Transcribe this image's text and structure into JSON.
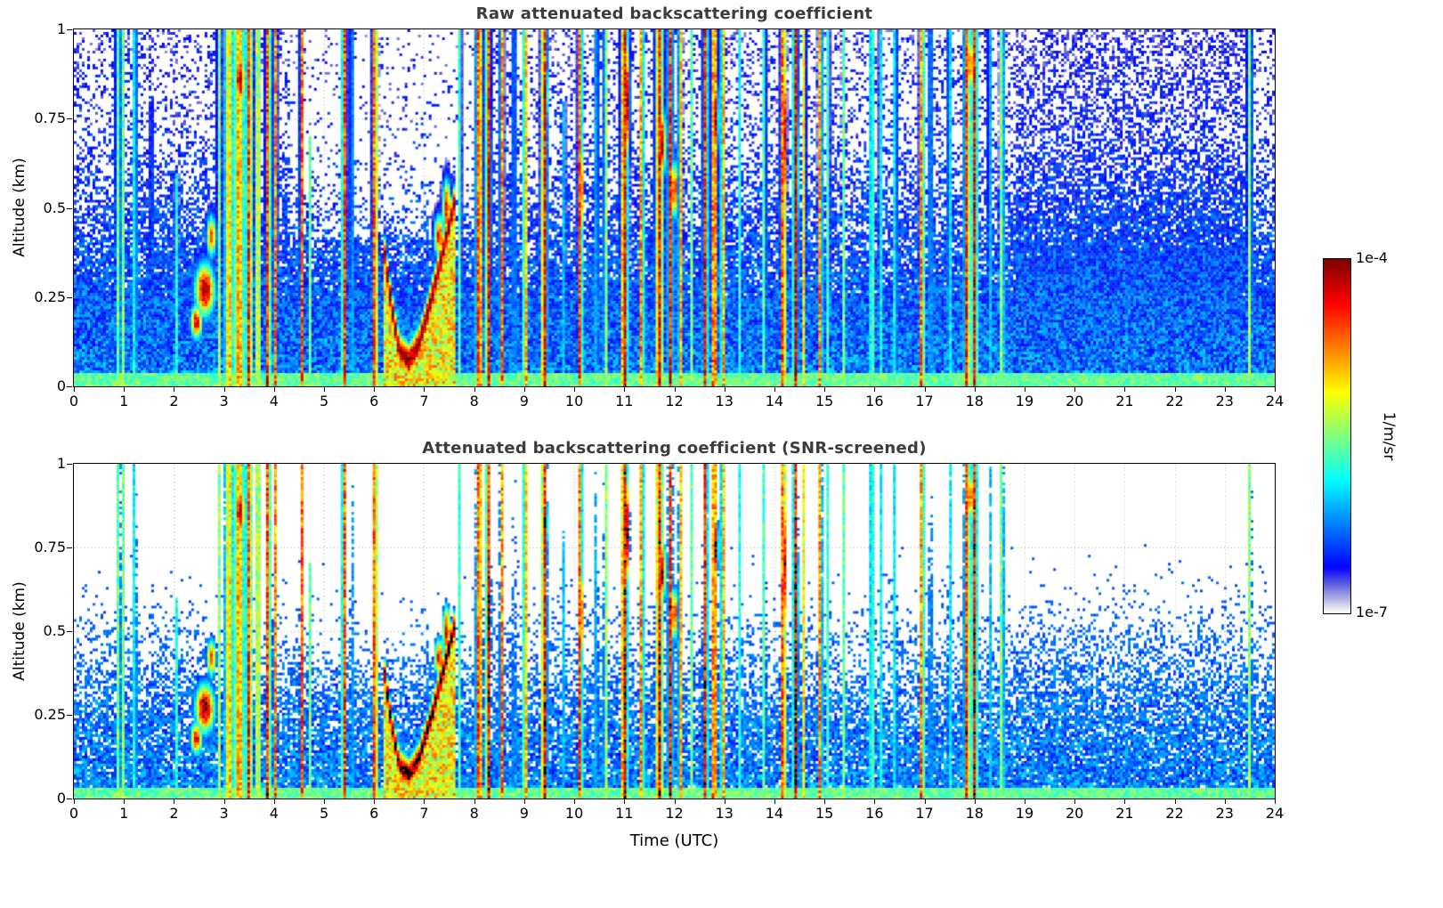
{
  "figure": {
    "xlabel": "Time (UTC)",
    "xticks": [
      "0",
      "1",
      "2",
      "3",
      "4",
      "5",
      "6",
      "7",
      "8",
      "9",
      "10",
      "11",
      "12",
      "13",
      "14",
      "15",
      "16",
      "17",
      "18",
      "19",
      "20",
      "21",
      "22",
      "23",
      "24"
    ],
    "panels": [
      {
        "title": "Raw attenuated backscattering coefficient",
        "ylabel": "Altitude (km)",
        "yticks": [
          "0",
          "0.25",
          "0.5",
          "0.75",
          "1"
        ],
        "screened": false
      },
      {
        "title": "Attenuated backscattering coefficient (SNR-screened)",
        "ylabel": "Altitude (km)",
        "yticks": [
          "0",
          "0.25",
          "0.5",
          "0.75",
          "1"
        ],
        "screened": true
      }
    ]
  },
  "colorbar": {
    "top_label": "1e-4",
    "bottom_label": "1e-7",
    "units_label": "1/m/sr"
  },
  "chart_data": {
    "type": "heatmap",
    "panel_titles": [
      "Raw attenuated backscattering coefficient",
      "Attenuated backscattering coefficient (SNR-screened)"
    ],
    "x": {
      "label": "Time (UTC)",
      "range_hours": [
        0,
        24
      ],
      "ticks": [
        0,
        1,
        2,
        3,
        4,
        5,
        6,
        7,
        8,
        9,
        10,
        11,
        12,
        13,
        14,
        15,
        16,
        17,
        18,
        19,
        20,
        21,
        22,
        23,
        24
      ]
    },
    "y": {
      "label": "Altitude (km)",
      "range_km": [
        0,
        1
      ],
      "ticks": [
        0,
        0.25,
        0.5,
        0.75,
        1
      ]
    },
    "value": {
      "units": "1/m/sr",
      "scale": "log",
      "range": [
        "1e-7",
        "1e-4"
      ],
      "colormap": "jet with low end fading to white",
      "screened_saturated_color": "black"
    },
    "grid": {
      "vertical_every_hour": true,
      "horizontal_at": [
        0.25,
        0.5,
        0.75
      ],
      "style": "dotted"
    },
    "features": {
      "background": {
        "base": 0.26,
        "slope": 0.15,
        "white_threshold": 0.045,
        "ground_band_height": 0.035,
        "ground_band_amp": 0.4
      },
      "speckle": {
        "white_base": -0.38,
        "white_slope": 1.6,
        "white_max": 0.75,
        "sparse_region": [
          4.3,
          8.15,
          0.42,
          0.3
        ],
        "dense_region": [
          18.8,
          23.35,
          0.2
        ]
      },
      "screening": {
        "threshold_base": 0.075,
        "threshold_slope": 0.16,
        "threshold_noise": 0.1,
        "black_above": 0.965
      },
      "stripes": [
        [
          0.88,
          0.05,
          0.5,
          0,
          1
        ],
        [
          0.97,
          0.04,
          0.62,
          0,
          1
        ],
        [
          1.22,
          0.04,
          0.5,
          0,
          1
        ],
        [
          1.55,
          0.03,
          0.32,
          0,
          0.8
        ],
        [
          2.05,
          0.04,
          0.42,
          0,
          0.6
        ],
        [
          2.9,
          0.04,
          0.55,
          0,
          1
        ],
        [
          3.1,
          0.1,
          0.7,
          0,
          1
        ],
        [
          3.3,
          0.12,
          0.74,
          0,
          1
        ],
        [
          3.5,
          0.07,
          0.85,
          0,
          1
        ],
        [
          3.68,
          0.04,
          0.88,
          0,
          1
        ],
        [
          3.88,
          0.05,
          0.92,
          0,
          1
        ],
        [
          4.02,
          0.04,
          0.8,
          0,
          1
        ],
        [
          4.55,
          0.035,
          0.88,
          0,
          1
        ],
        [
          4.72,
          0.03,
          0.5,
          0,
          0.7
        ],
        [
          5.4,
          0.045,
          0.92,
          0,
          1
        ],
        [
          5.55,
          0.03,
          0.5,
          0,
          1
        ],
        [
          6.02,
          0.05,
          0.95,
          0,
          1
        ],
        [
          7.72,
          0.03,
          0.55,
          0,
          1
        ],
        [
          8.1,
          0.07,
          0.88,
          0,
          1
        ],
        [
          8.28,
          0.05,
          0.95,
          0,
          1
        ],
        [
          8.55,
          0.04,
          0.82,
          0,
          1
        ],
        [
          8.8,
          0.03,
          0.5,
          0,
          1
        ],
        [
          9.02,
          0.04,
          0.9,
          0,
          1
        ],
        [
          9.4,
          0.06,
          0.93,
          0,
          1
        ],
        [
          9.8,
          0.03,
          0.4,
          0,
          0.8
        ],
        [
          10.12,
          0.045,
          0.9,
          0,
          1
        ],
        [
          10.45,
          0.03,
          0.55,
          0,
          1
        ],
        [
          10.62,
          0.03,
          0.85,
          0,
          1
        ],
        [
          11.0,
          0.07,
          0.95,
          0,
          1
        ],
        [
          11.35,
          0.04,
          0.9,
          0,
          1
        ],
        [
          11.7,
          0.08,
          0.9,
          0,
          1
        ],
        [
          11.92,
          0.05,
          0.88,
          0,
          1
        ],
        [
          12.12,
          0.04,
          0.8,
          0,
          1
        ],
        [
          12.35,
          0.03,
          0.5,
          0,
          1
        ],
        [
          12.62,
          0.05,
          0.9,
          0,
          1
        ],
        [
          12.8,
          0.06,
          0.92,
          0,
          1
        ],
        [
          12.97,
          0.04,
          0.85,
          0,
          1
        ],
        [
          13.3,
          0.03,
          0.45,
          0,
          1
        ],
        [
          13.8,
          0.04,
          0.52,
          0,
          1
        ],
        [
          14.18,
          0.05,
          0.95,
          0,
          1
        ],
        [
          14.42,
          0.05,
          0.95,
          0,
          1
        ],
        [
          14.6,
          0.03,
          0.8,
          0,
          1
        ],
        [
          14.92,
          0.04,
          0.85,
          0,
          1
        ],
        [
          15.08,
          0.03,
          0.55,
          0,
          1
        ],
        [
          15.38,
          0.03,
          0.52,
          0,
          1
        ],
        [
          15.95,
          0.045,
          0.58,
          0,
          1
        ],
        [
          16.12,
          0.03,
          0.48,
          0,
          1
        ],
        [
          16.42,
          0.035,
          0.52,
          0,
          1
        ],
        [
          16.95,
          0.045,
          0.88,
          0,
          1
        ],
        [
          17.12,
          0.03,
          0.55,
          0,
          1
        ],
        [
          17.5,
          0.035,
          0.52,
          0,
          1
        ],
        [
          17.85,
          0.06,
          0.88,
          0,
          1
        ],
        [
          18.0,
          0.06,
          0.92,
          0,
          1
        ],
        [
          18.3,
          0.03,
          0.5,
          0,
          1
        ],
        [
          18.55,
          0.045,
          0.6,
          0,
          1
        ],
        [
          23.5,
          0.05,
          0.55,
          0,
          1
        ]
      ],
      "blobs": [
        [
          2.62,
          0.27,
          0.2,
          0.075,
          1.0
        ],
        [
          2.45,
          0.18,
          0.12,
          0.05,
          0.9
        ],
        [
          2.75,
          0.42,
          0.1,
          0.06,
          0.8
        ],
        [
          3.32,
          0.86,
          0.1,
          0.08,
          1.0
        ],
        [
          3.3,
          0.6,
          0.08,
          0.07,
          0.8
        ],
        [
          7.45,
          0.5,
          0.08,
          0.08,
          0.92
        ],
        [
          7.3,
          0.42,
          0.1,
          0.06,
          0.88
        ],
        [
          8.3,
          0.55,
          0.04,
          0.3,
          0.98
        ],
        [
          9.42,
          0.82,
          0.05,
          0.1,
          0.97
        ],
        [
          10.14,
          0.55,
          0.04,
          0.15,
          0.95
        ],
        [
          11.05,
          0.8,
          0.06,
          0.18,
          0.99
        ],
        [
          11.0,
          0.3,
          0.05,
          0.1,
          0.9
        ],
        [
          11.75,
          0.68,
          0.08,
          0.1,
          1.0
        ],
        [
          12.0,
          0.55,
          0.06,
          0.08,
          0.95
        ],
        [
          12.82,
          0.75,
          0.06,
          0.12,
          0.97
        ],
        [
          14.2,
          0.7,
          0.04,
          0.25,
          0.99
        ],
        [
          14.44,
          0.6,
          0.04,
          0.25,
          0.98
        ],
        [
          17.92,
          0.9,
          0.05,
          0.08,
          0.97
        ]
      ],
      "arc": {
        "path": [
          [
            6.18,
            0.4
          ],
          [
            6.35,
            0.22
          ],
          [
            6.5,
            0.1
          ],
          [
            6.7,
            0.07
          ],
          [
            6.9,
            0.12
          ],
          [
            7.1,
            0.22
          ],
          [
            7.3,
            0.33
          ],
          [
            7.5,
            0.45
          ],
          [
            7.62,
            0.52
          ]
        ],
        "amp": 1.0,
        "sigma_z": 0.05,
        "under_amp": 0.62
      }
    }
  }
}
